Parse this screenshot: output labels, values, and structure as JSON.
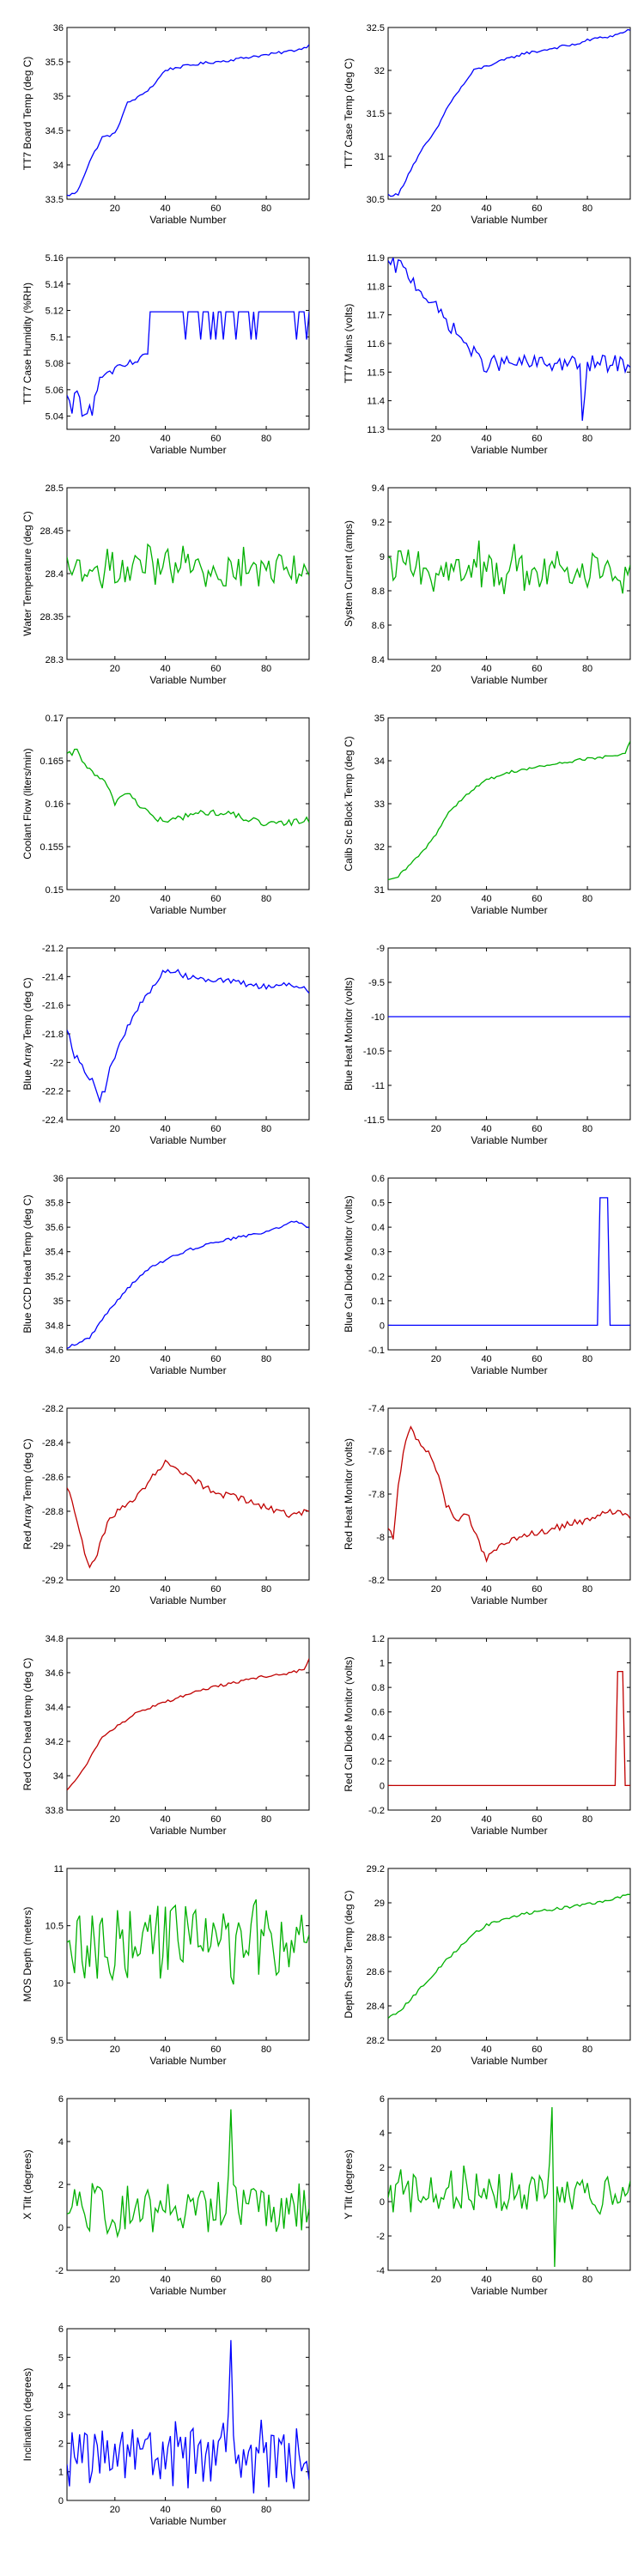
{
  "figure": {
    "type": "grid-of-line-plots"
  },
  "chart_data": [
    {
      "type": "line",
      "color": "#0000ff",
      "ylabel": "TT7 Board Temp (deg C)",
      "xlabel": "Variable Number",
      "xlim": [
        1,
        97
      ],
      "ylim": [
        33.5,
        36
      ],
      "xticks": [
        20,
        40,
        60,
        80
      ],
      "yticks": [
        "33.5",
        "34",
        "34.5",
        "35",
        "35.5",
        "36"
      ],
      "pattern": "rise",
      "x": [
        1,
        5,
        10,
        15,
        20,
        25,
        30,
        35,
        40,
        45,
        50,
        55,
        60,
        65,
        70,
        75,
        80,
        85,
        90,
        95,
        97
      ],
      "y": [
        33.55,
        33.6,
        34.05,
        34.4,
        34.45,
        34.9,
        35.0,
        35.15,
        35.38,
        35.42,
        35.45,
        35.48,
        35.5,
        35.52,
        35.55,
        35.58,
        35.6,
        35.63,
        35.66,
        35.7,
        35.75
      ]
    },
    {
      "type": "line",
      "color": "#0000ff",
      "ylabel": "TT7 Case Temp (deg C)",
      "xlabel": "Variable Number",
      "xlim": [
        1,
        97
      ],
      "ylim": [
        30.5,
        32.5
      ],
      "xticks": [
        20,
        40,
        60,
        80
      ],
      "yticks": [
        "30.5",
        "31",
        "31.5",
        "32",
        "32.5"
      ],
      "pattern": "rise",
      "x": [
        1,
        5,
        10,
        15,
        20,
        25,
        30,
        35,
        40,
        45,
        50,
        55,
        60,
        65,
        70,
        75,
        80,
        85,
        90,
        95,
        97
      ],
      "y": [
        30.55,
        30.55,
        30.85,
        31.1,
        31.3,
        31.6,
        31.8,
        32.0,
        32.05,
        32.1,
        32.15,
        32.2,
        32.22,
        32.25,
        32.28,
        32.3,
        32.35,
        32.38,
        32.4,
        32.45,
        32.48
      ]
    },
    {
      "type": "line",
      "color": "#0000ff",
      "ylabel": "TT7 Case Humidity (%RH)",
      "xlabel": "Variable Number",
      "xlim": [
        1,
        97
      ],
      "ylim": [
        5.03,
        5.16
      ],
      "xticks": [
        20,
        40,
        60,
        80
      ],
      "yticks": [
        "5.04",
        "5.06",
        "5.08",
        "5.1",
        "5.12",
        "5.14",
        "5.16"
      ],
      "pattern": "humidity"
    },
    {
      "type": "line",
      "color": "#0000ff",
      "ylabel": "TT7 Mains  (volts)",
      "xlabel": "Variable Number",
      "xlim": [
        1,
        97
      ],
      "ylim": [
        11.3,
        11.9
      ],
      "xticks": [
        20,
        40,
        60,
        80
      ],
      "yticks": [
        "11.3",
        "11.4",
        "11.5",
        "11.6",
        "11.7",
        "11.8",
        "11.9"
      ],
      "pattern": "mains"
    },
    {
      "type": "line",
      "color": "#00b000",
      "ylabel": "Water Temperature (deg C)",
      "xlabel": "Variable Number",
      "xlim": [
        1,
        97
      ],
      "ylim": [
        28.3,
        28.5
      ],
      "xticks": [
        20,
        40,
        60,
        80
      ],
      "yticks": [
        "28.3",
        "28.35",
        "28.4",
        "28.45",
        "28.5"
      ],
      "pattern": "noise",
      "base": 28.405,
      "amp": 0.022
    },
    {
      "type": "line",
      "color": "#00b000",
      "ylabel": "System Current (amps)",
      "xlabel": "Variable Number",
      "xlim": [
        1,
        97
      ],
      "ylim": [
        8.4,
        9.4
      ],
      "xticks": [
        20,
        40,
        60,
        80
      ],
      "yticks": [
        "8.4",
        "8.6",
        "8.8",
        "9",
        "9.2",
        "9.4"
      ],
      "pattern": "noise",
      "base": 8.93,
      "amp": 0.12
    },
    {
      "type": "line",
      "color": "#00b000",
      "ylabel": "Coolant Flow (liters/min)",
      "xlabel": "Variable Number",
      "xlim": [
        1,
        97
      ],
      "ylim": [
        0.15,
        0.17
      ],
      "xticks": [
        20,
        40,
        60,
        80
      ],
      "yticks": [
        "0.15",
        "0.155",
        "0.16",
        "0.165",
        "0.17"
      ],
      "pattern": "decay",
      "x": [
        1,
        5,
        10,
        15,
        20,
        25,
        30,
        35,
        40,
        50,
        60,
        70,
        80,
        90,
        97
      ],
      "y": [
        0.1655,
        0.1662,
        0.1638,
        0.1628,
        0.1602,
        0.1614,
        0.1598,
        0.1585,
        0.1578,
        0.1588,
        0.159,
        0.1585,
        0.1575,
        0.1578,
        0.1582
      ]
    },
    {
      "type": "line",
      "color": "#00b000",
      "ylabel": "Calib Src Block Temp (deg C)",
      "xlabel": "Variable Number",
      "xlim": [
        1,
        97
      ],
      "ylim": [
        31,
        35
      ],
      "xticks": [
        20,
        40,
        60,
        80
      ],
      "yticks": [
        "31",
        "32",
        "33",
        "34",
        "35"
      ],
      "pattern": "rise",
      "x": [
        1,
        5,
        10,
        15,
        20,
        25,
        30,
        35,
        40,
        45,
        50,
        60,
        70,
        80,
        90,
        95,
        97
      ],
      "y": [
        31.2,
        31.3,
        31.6,
        31.9,
        32.3,
        32.8,
        33.1,
        33.35,
        33.55,
        33.65,
        33.75,
        33.85,
        33.95,
        34.05,
        34.1,
        34.2,
        34.45
      ]
    },
    {
      "type": "line",
      "color": "#0000ff",
      "ylabel": "Blue Array Temp (deg C)",
      "xlabel": "Variable Number",
      "xlim": [
        1,
        97
      ],
      "ylim": [
        -22.4,
        -21.2
      ],
      "xticks": [
        20,
        40,
        60,
        80
      ],
      "yticks": [
        "-22.4",
        "-22.2",
        "-22",
        "-21.8",
        "-21.6",
        "-21.4",
        "-21.2"
      ],
      "pattern": "dipRise",
      "x": [
        1,
        4,
        8,
        12,
        14,
        16,
        18,
        20,
        24,
        28,
        32,
        36,
        40,
        50,
        60,
        70,
        80,
        90,
        97
      ],
      "y": [
        -21.75,
        -21.95,
        -22.05,
        -22.15,
        -22.25,
        -22.2,
        -22.05,
        -21.95,
        -21.8,
        -21.65,
        -21.55,
        -21.45,
        -21.35,
        -21.4,
        -21.42,
        -21.45,
        -21.47,
        -21.45,
        -21.5
      ]
    },
    {
      "type": "line",
      "color": "#0000ff",
      "ylabel": "Blue Heat Monitor (volts)",
      "xlabel": "Variable Number",
      "xlim": [
        1,
        97
      ],
      "ylim": [
        -11.5,
        -9
      ],
      "xticks": [
        20,
        40,
        60,
        80
      ],
      "yticks": [
        "-11.5",
        "-11",
        "-10.5",
        "-10",
        "-9.5",
        "-9"
      ],
      "pattern": "flat",
      "x": [
        1,
        97
      ],
      "y": [
        -10,
        -10
      ]
    },
    {
      "type": "line",
      "color": "#0000ff",
      "ylabel": "Blue CCD Head Temp (deg C)",
      "xlabel": "Variable Number",
      "xlim": [
        1,
        97
      ],
      "ylim": [
        34.6,
        36
      ],
      "xticks": [
        20,
        40,
        60,
        80
      ],
      "yticks": [
        "34.6",
        "34.8",
        "35",
        "35.2",
        "35.4",
        "35.6",
        "35.8",
        "36"
      ],
      "pattern": "rise",
      "x": [
        1,
        5,
        10,
        15,
        20,
        25,
        30,
        35,
        40,
        45,
        50,
        55,
        60,
        65,
        70,
        75,
        80,
        85,
        90,
        95,
        97
      ],
      "y": [
        34.62,
        34.65,
        34.7,
        34.85,
        34.98,
        35.1,
        35.2,
        35.28,
        35.33,
        35.38,
        35.42,
        35.45,
        35.48,
        35.5,
        35.52,
        35.54,
        35.56,
        35.6,
        35.65,
        35.62,
        35.6
      ]
    },
    {
      "type": "line",
      "color": "#0000ff",
      "ylabel": "Blue Cal Diode Monitor (volts)",
      "xlabel": "Variable Number",
      "xlim": [
        1,
        97
      ],
      "ylim": [
        -0.1,
        0.6
      ],
      "xticks": [
        20,
        40,
        60,
        80
      ],
      "yticks": [
        "-0.1",
        "0",
        "0.1",
        "0.2",
        "0.3",
        "0.4",
        "0.5",
        "0.6"
      ],
      "pattern": "pulse",
      "x": [
        1,
        84,
        85,
        88,
        89,
        97
      ],
      "y": [
        0,
        0,
        0.52,
        0.52,
        0,
        0
      ]
    },
    {
      "type": "line",
      "color": "#c00000",
      "ylabel": "Red Array Temp (deg C)",
      "xlabel": "Variable Number",
      "xlim": [
        1,
        97
      ],
      "ylim": [
        -29.2,
        -28.2
      ],
      "xticks": [
        20,
        40,
        60,
        80
      ],
      "yticks": [
        "-29.2",
        "-29",
        "-28.8",
        "-28.6",
        "-28.4",
        "-28.2"
      ],
      "pattern": "dipRise",
      "x": [
        1,
        4,
        8,
        10,
        12,
        14,
        18,
        22,
        26,
        30,
        35,
        40,
        45,
        50,
        60,
        70,
        80,
        90,
        97
      ],
      "y": [
        -28.65,
        -28.8,
        -29.05,
        -29.12,
        -29.1,
        -28.98,
        -28.85,
        -28.78,
        -28.75,
        -28.68,
        -28.6,
        -28.52,
        -28.55,
        -28.6,
        -28.7,
        -28.72,
        -28.78,
        -28.82,
        -28.8
      ]
    },
    {
      "type": "line",
      "color": "#c00000",
      "ylabel": "Red Heat Monitor (volts)",
      "xlabel": "Variable Number",
      "xlim": [
        1,
        97
      ],
      "ylim": [
        -8.2,
        -7.4
      ],
      "xticks": [
        20,
        40,
        60,
        80
      ],
      "yticks": [
        "-8.2",
        "-8",
        "-7.8",
        "-7.6",
        "-7.4"
      ],
      "pattern": "redheat",
      "x": [
        1,
        3,
        5,
        8,
        10,
        14,
        18,
        20,
        24,
        28,
        32,
        36,
        40,
        45,
        50,
        60,
        70,
        80,
        90,
        97
      ],
      "y": [
        -7.95,
        -8.0,
        -7.75,
        -7.55,
        -7.5,
        -7.58,
        -7.62,
        -7.68,
        -7.85,
        -7.92,
        -7.88,
        -8.0,
        -8.1,
        -8.05,
        -8.02,
        -7.98,
        -7.95,
        -7.92,
        -7.88,
        -7.9
      ]
    },
    {
      "type": "line",
      "color": "#c00000",
      "ylabel": "Red CCD head temp (deg C)",
      "xlabel": "Variable Number",
      "xlim": [
        1,
        97
      ],
      "ylim": [
        33.8,
        34.8
      ],
      "xticks": [
        20,
        40,
        60,
        80
      ],
      "yticks": [
        "33.8",
        "34",
        "34.2",
        "34.4",
        "34.6",
        "34.8"
      ],
      "pattern": "rise",
      "x": [
        1,
        5,
        10,
        15,
        20,
        25,
        30,
        35,
        40,
        50,
        60,
        70,
        80,
        90,
        95,
        97
      ],
      "y": [
        33.92,
        33.98,
        34.1,
        34.22,
        34.28,
        34.33,
        34.38,
        34.4,
        34.43,
        34.48,
        34.52,
        34.55,
        34.58,
        34.6,
        34.62,
        34.68
      ]
    },
    {
      "type": "line",
      "color": "#c00000",
      "ylabel": "Red Cal Diode Monitor (volts)",
      "xlabel": "Variable Number",
      "xlim": [
        1,
        97
      ],
      "ylim": [
        -0.2,
        1.2
      ],
      "xticks": [
        20,
        40,
        60,
        80
      ],
      "yticks": [
        "-0.2",
        "0",
        "0.2",
        "0.4",
        "0.6",
        "0.8",
        "1",
        "1.2"
      ],
      "pattern": "pulse",
      "x": [
        1,
        91,
        92,
        94,
        95,
        97
      ],
      "y": [
        0,
        0,
        0.93,
        0.93,
        0,
        0
      ]
    },
    {
      "type": "line",
      "color": "#00b000",
      "ylabel": "MOS Depth  (meters)",
      "xlabel": "Variable Number",
      "xlim": [
        1,
        97
      ],
      "ylim": [
        9.5,
        11
      ],
      "xticks": [
        20,
        40,
        60,
        80
      ],
      "yticks": [
        "9.5",
        "10",
        "10.5",
        "11"
      ],
      "pattern": "noise",
      "base": 10.35,
      "amp": 0.28
    },
    {
      "type": "line",
      "color": "#00b000",
      "ylabel": "Depth Sensor Temp (deg C)",
      "xlabel": "Variable Number",
      "xlim": [
        1,
        97
      ],
      "ylim": [
        28.2,
        29.2
      ],
      "xticks": [
        20,
        40,
        60,
        80
      ],
      "yticks": [
        "28.2",
        "28.4",
        "28.6",
        "28.8",
        "29",
        "29.2"
      ],
      "pattern": "rise",
      "x": [
        1,
        5,
        10,
        15,
        20,
        25,
        30,
        35,
        40,
        50,
        60,
        70,
        80,
        90,
        97
      ],
      "y": [
        28.33,
        28.36,
        28.44,
        28.52,
        28.6,
        28.68,
        28.75,
        28.82,
        28.87,
        28.92,
        28.95,
        28.97,
        28.99,
        29.02,
        29.05
      ]
    },
    {
      "type": "line",
      "color": "#00b000",
      "ylabel": "X Tilt  (degrees)",
      "xlabel": "Variable Number",
      "xlim": [
        1,
        97
      ],
      "ylim": [
        -2,
        6
      ],
      "xticks": [
        20,
        40,
        60,
        80
      ],
      "yticks": [
        "-2",
        "0",
        "2",
        "4",
        "6"
      ],
      "pattern": "noise",
      "base": 0.8,
      "amp": 1.1,
      "spike": [
        66,
        5.5
      ]
    },
    {
      "type": "line",
      "color": "#00b000",
      "ylabel": "Y Tilt  (degrees)",
      "xlabel": "Variable Number",
      "xlim": [
        1,
        97
      ],
      "ylim": [
        -4,
        6
      ],
      "xticks": [
        20,
        40,
        60,
        80
      ],
      "yticks": [
        "-4",
        "-2",
        "0",
        "2",
        "4",
        "6"
      ],
      "pattern": "noise",
      "base": 0.5,
      "amp": 1.2,
      "spike": [
        66,
        5.5
      ],
      "dip": [
        66,
        -3.8
      ]
    },
    {
      "type": "line",
      "color": "#0000ff",
      "ylabel": "Inclination  (degrees)",
      "xlabel": "Variable Number",
      "xlim": [
        1,
        97
      ],
      "ylim": [
        0,
        6
      ],
      "xticks": [
        20,
        40,
        60,
        80
      ],
      "yticks": [
        "0",
        "1",
        "2",
        "3",
        "4",
        "5",
        "6"
      ],
      "pattern": "noise",
      "base": 1.6,
      "amp": 1.0,
      "spike": [
        66,
        5.6
      ],
      "floor": 0.1
    }
  ]
}
